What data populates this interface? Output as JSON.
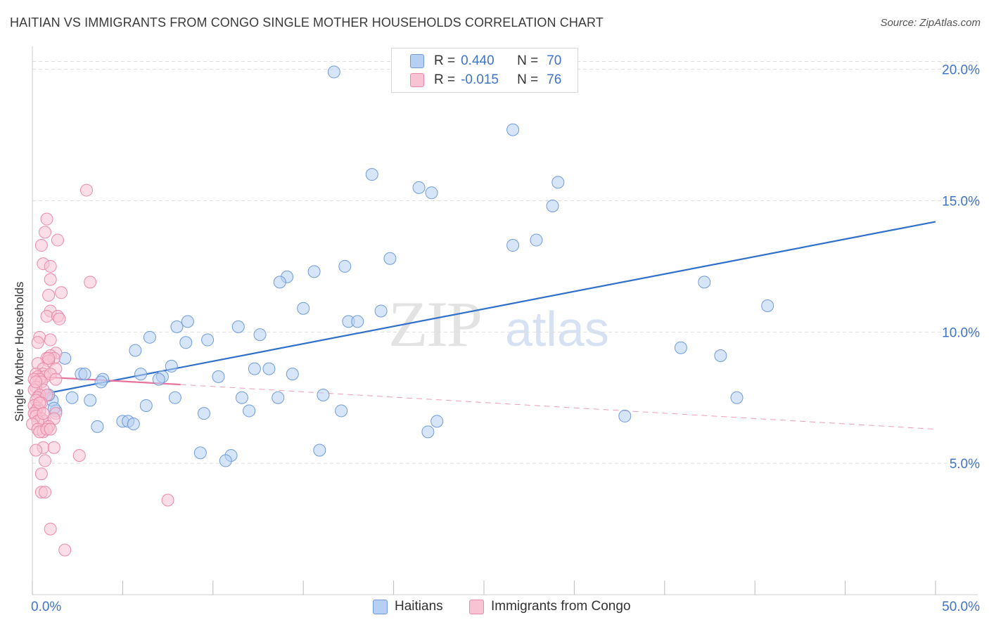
{
  "title": "HAITIAN VS IMMIGRANTS FROM CONGO SINGLE MOTHER HOUSEHOLDS CORRELATION CHART",
  "source": "Source: ZipAtlas.com",
  "watermark": {
    "zip": "ZIP",
    "atlas": "atlas"
  },
  "legend": {
    "rows": [
      {
        "r_label": "R =",
        "r_value": "0.440",
        "n_label": "N =",
        "n_value": "70"
      },
      {
        "r_label": "R =",
        "r_value": "-0.015",
        "n_label": "N =",
        "n_value": "76"
      }
    ]
  },
  "colors": {
    "blue_fill": "#b7cff2",
    "blue_stroke": "#6f9bd9",
    "blue_line": "#2f70cc",
    "pink_fill": "#f8c3d3",
    "pink_stroke": "#ea89a9",
    "pink_line": "#e8739c",
    "axis_text": "#3e74c9",
    "grid": "#dddddd"
  },
  "chart_data": {
    "type": "scatter",
    "xlabel": "",
    "ylabel": "Single Mother Households",
    "xlim": [
      0,
      50
    ],
    "ylim": [
      0,
      20.5
    ],
    "x_tick_labels": [
      "0.0%",
      "50.0%"
    ],
    "y_ticks": [
      5,
      10,
      15,
      20
    ],
    "y_tick_labels": [
      "5.0%",
      "10.0%",
      "15.0%",
      "20.0%"
    ],
    "grid": "horizontal dashed",
    "legend_position": "top-center and bottom",
    "series": [
      {
        "name": "Haitians",
        "color": "#6f9bd9",
        "trend": {
          "x": [
            0.3,
            50
          ],
          "y": [
            7.6,
            14.2
          ],
          "style": "solid"
        },
        "points": [
          [
            16.7,
            19.9
          ],
          [
            26.6,
            17.7
          ],
          [
            18.8,
            16.0
          ],
          [
            21.4,
            15.5
          ],
          [
            22.1,
            15.3
          ],
          [
            29.1,
            15.7
          ],
          [
            28.8,
            14.8
          ],
          [
            27.9,
            13.5
          ],
          [
            26.6,
            13.3
          ],
          [
            19.8,
            12.8
          ],
          [
            17.3,
            12.5
          ],
          [
            15.6,
            12.3
          ],
          [
            14.1,
            12.1
          ],
          [
            13.7,
            11.9
          ],
          [
            37.2,
            11.9
          ],
          [
            40.7,
            11.0
          ],
          [
            15.0,
            10.9
          ],
          [
            19.3,
            10.8
          ],
          [
            17.5,
            10.4
          ],
          [
            18.0,
            10.4
          ],
          [
            8.6,
            10.4
          ],
          [
            8.0,
            10.2
          ],
          [
            11.4,
            10.2
          ],
          [
            12.6,
            9.9
          ],
          [
            6.5,
            9.8
          ],
          [
            8.5,
            9.6
          ],
          [
            9.7,
            9.7
          ],
          [
            35.9,
            9.4
          ],
          [
            5.7,
            9.3
          ],
          [
            38.1,
            9.1
          ],
          [
            1.8,
            9.0
          ],
          [
            7.7,
            8.7
          ],
          [
            12.3,
            8.6
          ],
          [
            13.1,
            8.6
          ],
          [
            2.7,
            8.4
          ],
          [
            6.0,
            8.4
          ],
          [
            14.4,
            8.4
          ],
          [
            2.9,
            8.4
          ],
          [
            7.2,
            8.3
          ],
          [
            10.3,
            8.3
          ],
          [
            3.9,
            8.2
          ],
          [
            3.8,
            8.1
          ],
          [
            7.0,
            8.2
          ],
          [
            0.9,
            7.6
          ],
          [
            2.2,
            7.5
          ],
          [
            7.9,
            7.5
          ],
          [
            11.6,
            7.5
          ],
          [
            13.6,
            7.5
          ],
          [
            16.1,
            7.6
          ],
          [
            3.2,
            7.4
          ],
          [
            39.0,
            7.5
          ],
          [
            1.1,
            7.4
          ],
          [
            6.3,
            7.2
          ],
          [
            12.0,
            7.0
          ],
          [
            17.1,
            7.0
          ],
          [
            1.3,
            7.0
          ],
          [
            9.5,
            6.9
          ],
          [
            5.0,
            6.6
          ],
          [
            5.3,
            6.6
          ],
          [
            5.6,
            6.5
          ],
          [
            22.4,
            6.6
          ],
          [
            32.8,
            6.8
          ],
          [
            3.6,
            6.4
          ],
          [
            21.9,
            6.2
          ],
          [
            15.9,
            5.5
          ],
          [
            9.3,
            5.4
          ],
          [
            11.0,
            5.3
          ],
          [
            10.7,
            5.1
          ],
          [
            0.9,
            7.6
          ],
          [
            1.2,
            7.1
          ]
        ]
      },
      {
        "name": "Immigrants from Congo",
        "color": "#ea89a9",
        "trend": {
          "x": [
            0.3,
            8.2
          ],
          "y": [
            8.3,
            8.0
          ],
          "style": "solid"
        },
        "trend_extended": {
          "x": [
            8.2,
            50
          ],
          "y": [
            8.0,
            6.3
          ],
          "style": "dashed"
        },
        "points": [
          [
            3.0,
            15.4
          ],
          [
            0.8,
            14.3
          ],
          [
            0.7,
            13.8
          ],
          [
            1.4,
            13.5
          ],
          [
            0.5,
            13.3
          ],
          [
            0.6,
            12.6
          ],
          [
            1.0,
            12.5
          ],
          [
            1.0,
            12.0
          ],
          [
            3.2,
            11.9
          ],
          [
            1.6,
            11.5
          ],
          [
            0.9,
            11.4
          ],
          [
            1.0,
            10.8
          ],
          [
            0.8,
            10.6
          ],
          [
            1.4,
            10.6
          ],
          [
            1.5,
            10.5
          ],
          [
            0.4,
            9.8
          ],
          [
            1.0,
            9.7
          ],
          [
            0.3,
            9.6
          ],
          [
            1.3,
            9.2
          ],
          [
            1.0,
            9.1
          ],
          [
            0.8,
            9.0
          ],
          [
            1.2,
            9.0
          ],
          [
            0.9,
            8.9
          ],
          [
            0.3,
            8.8
          ],
          [
            0.6,
            8.6
          ],
          [
            1.3,
            8.6
          ],
          [
            0.6,
            8.4
          ],
          [
            0.2,
            8.4
          ],
          [
            0.3,
            8.3
          ],
          [
            0.7,
            8.3
          ],
          [
            1.0,
            8.4
          ],
          [
            0.4,
            8.2
          ],
          [
            0.1,
            8.2
          ],
          [
            0.5,
            8.1
          ],
          [
            1.3,
            8.2
          ],
          [
            0.2,
            7.9
          ],
          [
            0.6,
            7.8
          ],
          [
            0.1,
            7.8
          ],
          [
            0.4,
            7.6
          ],
          [
            0.3,
            7.5
          ],
          [
            0.8,
            7.6
          ],
          [
            0.2,
            7.4
          ],
          [
            0.5,
            7.3
          ],
          [
            0.1,
            7.2
          ],
          [
            0.3,
            7.1
          ],
          [
            0.4,
            7.0
          ],
          [
            0.2,
            7.0
          ],
          [
            1.3,
            6.9
          ],
          [
            0.1,
            6.9
          ],
          [
            0.2,
            6.8
          ],
          [
            0.5,
            6.7
          ],
          [
            0.7,
            6.6
          ],
          [
            1.2,
            6.7
          ],
          [
            0.3,
            6.6
          ],
          [
            0.0,
            6.5
          ],
          [
            0.3,
            6.3
          ],
          [
            0.9,
            6.4
          ],
          [
            0.6,
            6.2
          ],
          [
            0.4,
            6.2
          ],
          [
            0.8,
            6.3
          ],
          [
            1.0,
            6.3
          ],
          [
            0.6,
            5.6
          ],
          [
            0.2,
            5.5
          ],
          [
            1.2,
            5.6
          ],
          [
            2.6,
            5.3
          ],
          [
            0.7,
            5.1
          ],
          [
            0.5,
            4.6
          ],
          [
            0.5,
            3.9
          ],
          [
            0.7,
            3.9
          ],
          [
            7.5,
            3.6
          ],
          [
            1.0,
            2.5
          ],
          [
            1.8,
            1.7
          ],
          [
            0.9,
            9.0
          ],
          [
            0.2,
            8.1
          ],
          [
            0.4,
            7.3
          ],
          [
            0.6,
            6.9
          ]
        ]
      }
    ]
  }
}
